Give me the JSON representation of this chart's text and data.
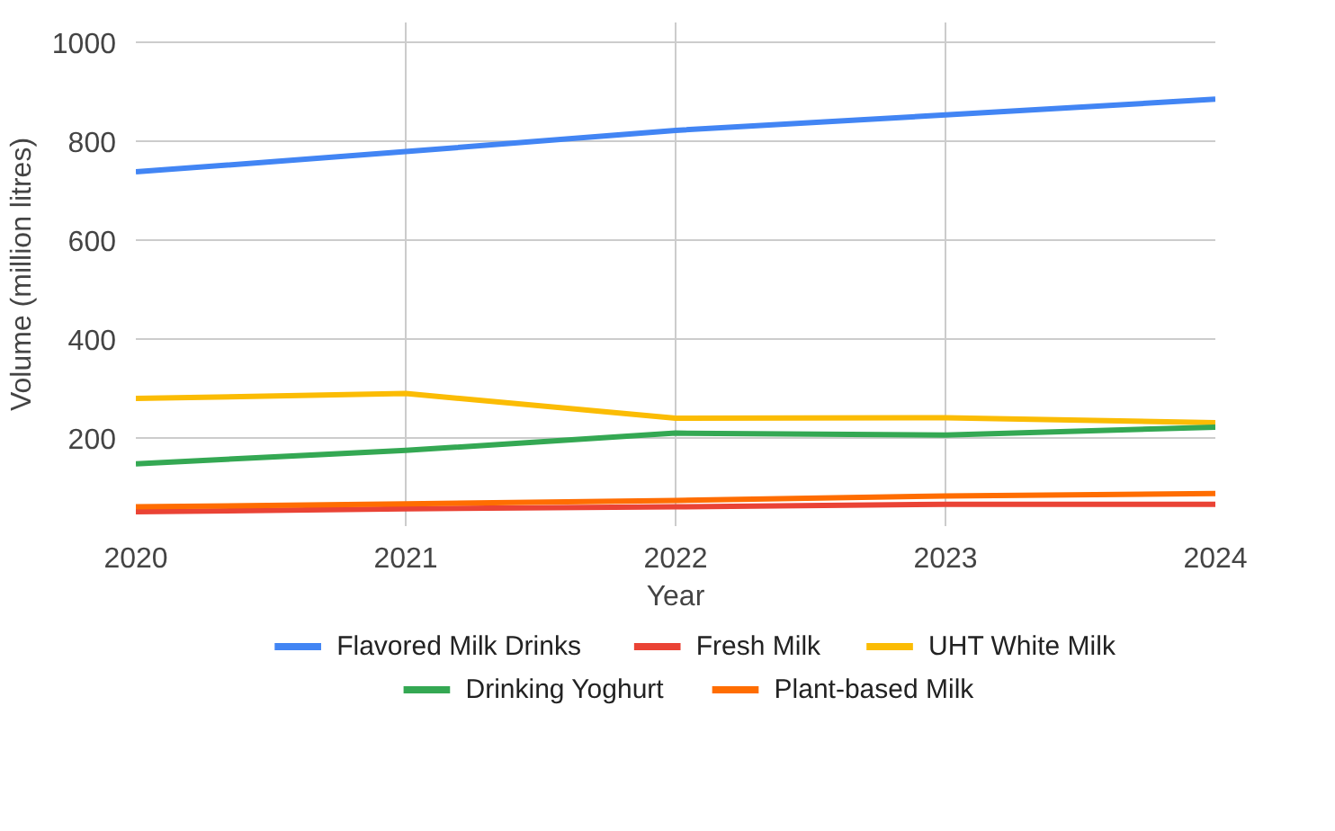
{
  "chart_data": {
    "type": "line",
    "xlabel": "Year",
    "ylabel": "Volume (million litres)",
    "x": [
      2020,
      2021,
      2022,
      2023,
      2024
    ],
    "xlim": [
      2020,
      2024
    ],
    "xticks": [
      2020,
      2021,
      2022,
      2023,
      2024
    ],
    "ylim": [
      22,
      1040
    ],
    "yticks": [
      200,
      400,
      600,
      800,
      1000
    ],
    "grid": true,
    "legend": "bottom",
    "marker": "none",
    "line_style": "solid",
    "series": [
      {
        "name": "Flavored Milk Drinks",
        "color": "#4285f4",
        "values": [
          738,
          779,
          822,
          853,
          885
        ]
      },
      {
        "name": "Fresh Milk",
        "color": "#ea4335",
        "values": [
          51,
          57,
          61,
          66,
          66
        ]
      },
      {
        "name": "UHT White Milk",
        "color": "#fbbc04",
        "values": [
          280,
          290,
          240,
          241,
          231
        ]
      },
      {
        "name": "Drinking Yoghurt",
        "color": "#34a853",
        "values": [
          148,
          175,
          210,
          206,
          222
        ]
      },
      {
        "name": "Plant-based Milk",
        "color": "#ff6d01",
        "values": [
          61,
          67,
          74,
          83,
          88
        ]
      }
    ]
  }
}
